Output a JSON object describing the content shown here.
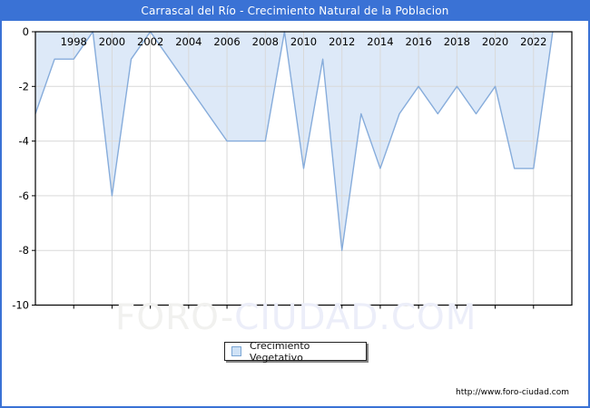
{
  "title_bar": {
    "text": "Carrascal del Río - Crecimiento Natural de la Poblacion"
  },
  "chart_data": {
    "type": "area",
    "title": "Carrascal del Río - Crecimiento Natural de la Poblacion",
    "series": [
      {
        "name": "Crecimiento Vegetativo",
        "x": [
          1996,
          1997,
          1998,
          1999,
          2000,
          2001,
          2002,
          2003,
          2004,
          2005,
          2006,
          2007,
          2008,
          2009,
          2010,
          2011,
          2012,
          2013,
          2014,
          2015,
          2016,
          2017,
          2018,
          2019,
          2020,
          2021,
          2022,
          2023
        ],
        "values": [
          -3,
          -1,
          -1,
          0,
          -6,
          -1,
          0,
          -1,
          -2,
          -3,
          -4,
          -4,
          -4,
          0,
          -5,
          -1,
          -8,
          -3,
          -5,
          -3,
          -2,
          -3,
          -2,
          -3,
          -2,
          -5,
          -5,
          0
        ]
      }
    ],
    "xlim": [
      1996,
      2024
    ],
    "ylim": [
      -10,
      0
    ],
    "xticks": [
      1998,
      2000,
      2002,
      2004,
      2006,
      2008,
      2010,
      2012,
      2014,
      2016,
      2018,
      2020,
      2022
    ],
    "yticks": [
      0,
      -2,
      -4,
      -6,
      -8,
      -10
    ],
    "grid": true,
    "baseline": 0,
    "legend_position": "bottom-center",
    "colors": {
      "fill": "#dde9f8",
      "line": "#86acdb",
      "grid": "#d9d9d9",
      "axis": "#000000",
      "tick_label": "#000000"
    }
  },
  "legend": {
    "label": "Crecimiento Vegetativo",
    "swatch_fill": "#cfe2f6",
    "swatch_border": "#7aa6d4"
  },
  "watermark": {
    "part1": "FORO-",
    "part2": "CIUDAD.COM"
  },
  "footer": {
    "url": "http://www.foro-ciudad.com"
  },
  "theme": {
    "accent_blue": "#3a72d5"
  }
}
